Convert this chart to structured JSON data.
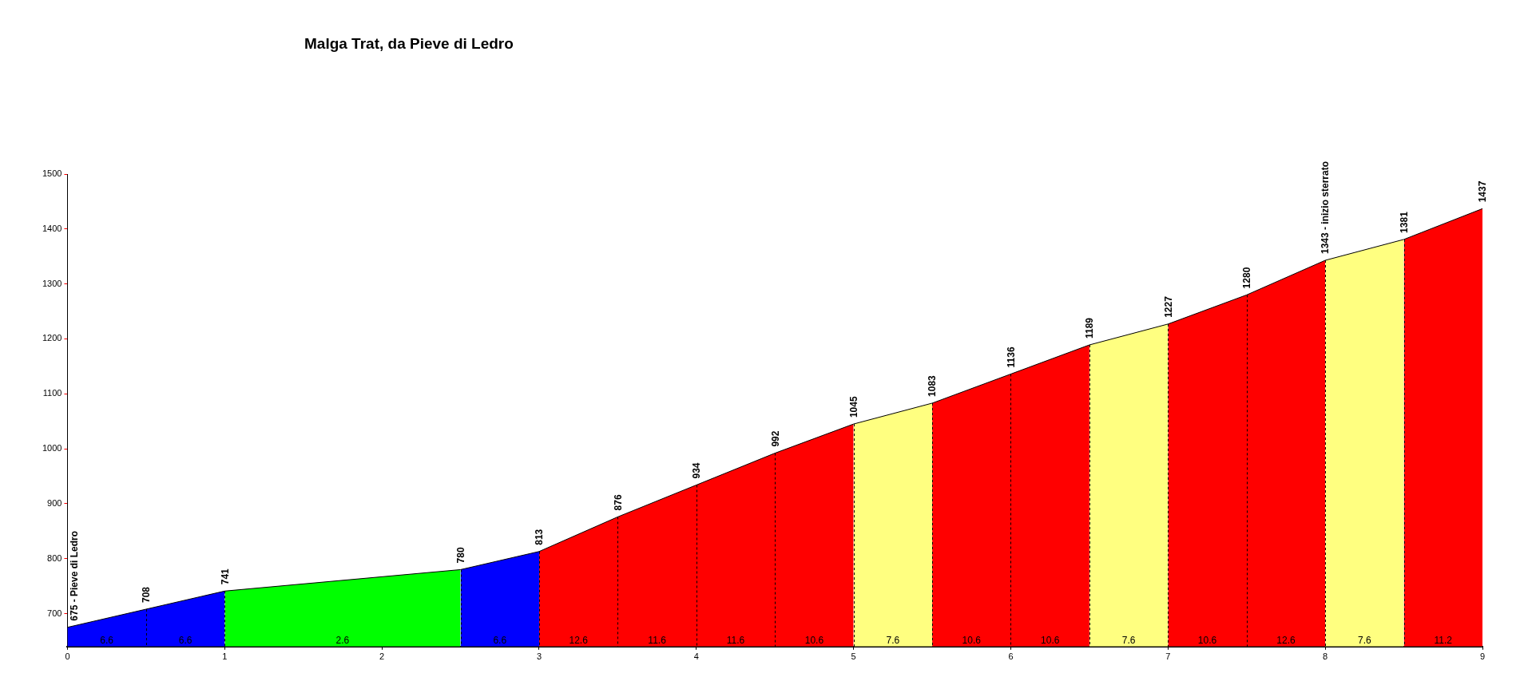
{
  "chart_data": {
    "type": "area",
    "title": "Malga Trat, da Pieve di Ledro",
    "series": [
      {
        "color": "#0000ff",
        "x": [
          0,
          0.5,
          1,
          1.75,
          2.5,
          3
        ],
        "values": [
          675,
          708,
          741,
          null,
          780,
          813
        ],
        "value_labels": [
          "675 - Pieve di Ledro",
          "708",
          "741",
          null,
          "780",
          "813"
        ]
      },
      {
        "color": "#00ff00",
        "x": [
          1,
          2.5
        ],
        "values": [
          741,
          780
        ],
        "value_labels": [
          null,
          null
        ]
      },
      {
        "color": "#ff0000",
        "x": [
          3,
          3.5,
          4,
          4.5,
          5,
          5.25,
          5.5,
          6,
          6.5,
          6.75,
          7,
          7.5,
          8,
          8.25,
          8.5,
          9
        ],
        "values": [
          813,
          876,
          934,
          992,
          1045,
          null,
          1083,
          1136,
          1189,
          null,
          1227,
          1280,
          1343,
          null,
          1381,
          1437
        ],
        "value_labels": [
          null,
          "876",
          "934",
          "992",
          "1045",
          null,
          "1083",
          "1136",
          "1189",
          null,
          "1227",
          "1280",
          "1343 - inizio sterrato",
          null,
          "1381",
          "1437"
        ]
      },
      {
        "color": "#ffff80",
        "x": [
          5,
          5.5,
          6,
          6.5,
          7,
          7.5,
          8,
          8.5
        ],
        "values": [
          1045,
          1083,
          null,
          1189,
          1227,
          null,
          1343,
          1381
        ],
        "value_labels": [
          null,
          null,
          null,
          null,
          null,
          null,
          null,
          null
        ]
      }
    ],
    "annotations": [
      "6.6",
      "6.6",
      "2.6",
      "6.6",
      "12.6",
      "11.6",
      "11.6",
      "10.6",
      "7.6",
      "10.6",
      "10.6",
      "7.6",
      "10.6",
      "12.6",
      "7.6",
      "11.2"
    ],
    "xlim": [
      0,
      9
    ],
    "xticks": [
      0,
      1,
      2,
      3,
      4,
      5,
      6,
      7,
      8,
      9
    ],
    "ylim": [
      640,
      1500
    ],
    "yticks": [
      700,
      800,
      900,
      1000,
      1100,
      1200,
      1300,
      1400,
      1500
    ]
  }
}
